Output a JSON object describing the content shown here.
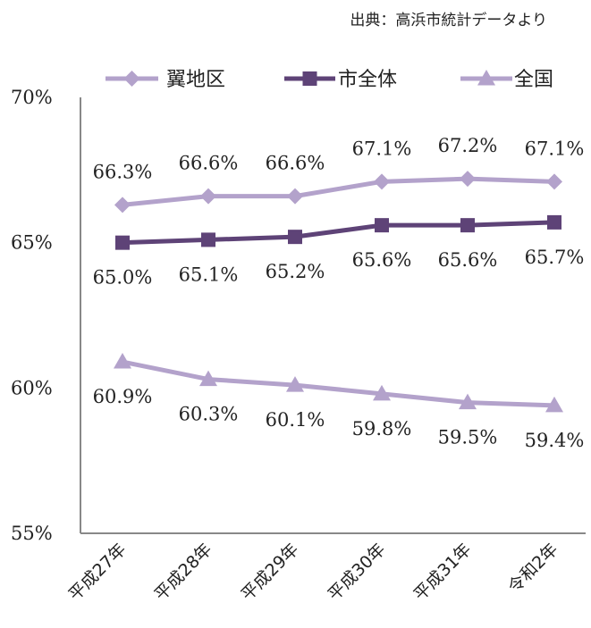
{
  "source": "出典：高浜市統計データより",
  "chart_data": {
    "type": "line",
    "categories": [
      "平成27年",
      "平成28年",
      "平成29年",
      "平成30年",
      "平成31年",
      "令和2年"
    ],
    "ylim": [
      55,
      70
    ],
    "yticks": [
      {
        "value": 70,
        "label": "70%"
      },
      {
        "value": 65,
        "label": "65%"
      },
      {
        "value": 60,
        "label": "60%"
      },
      {
        "value": 55,
        "label": "55%"
      }
    ],
    "legend_position": "top",
    "grid": false,
    "series": [
      {
        "name": "翼地区",
        "marker": "diamond",
        "color": "#B3A2CB",
        "values": [
          66.3,
          66.6,
          66.6,
          67.1,
          67.2,
          67.1
        ],
        "labels": [
          "66.3%",
          "66.6%",
          "66.6%",
          "67.1%",
          "67.2%",
          "67.1%"
        ],
        "label_position": "above"
      },
      {
        "name": "市全体",
        "marker": "square",
        "color": "#5E4377",
        "values": [
          65.0,
          65.1,
          65.2,
          65.6,
          65.6,
          65.7
        ],
        "labels": [
          "65.0%",
          "65.1%",
          "65.2%",
          "65.6%",
          "65.6%",
          "65.7%"
        ],
        "label_position": "below"
      },
      {
        "name": "全国",
        "marker": "triangle",
        "color": "#B3A2CB",
        "values": [
          60.9,
          60.3,
          60.1,
          59.8,
          59.5,
          59.4
        ],
        "labels": [
          "60.9%",
          "60.3%",
          "60.1%",
          "59.8%",
          "59.5%",
          "59.4%"
        ],
        "label_position": "below"
      }
    ]
  }
}
